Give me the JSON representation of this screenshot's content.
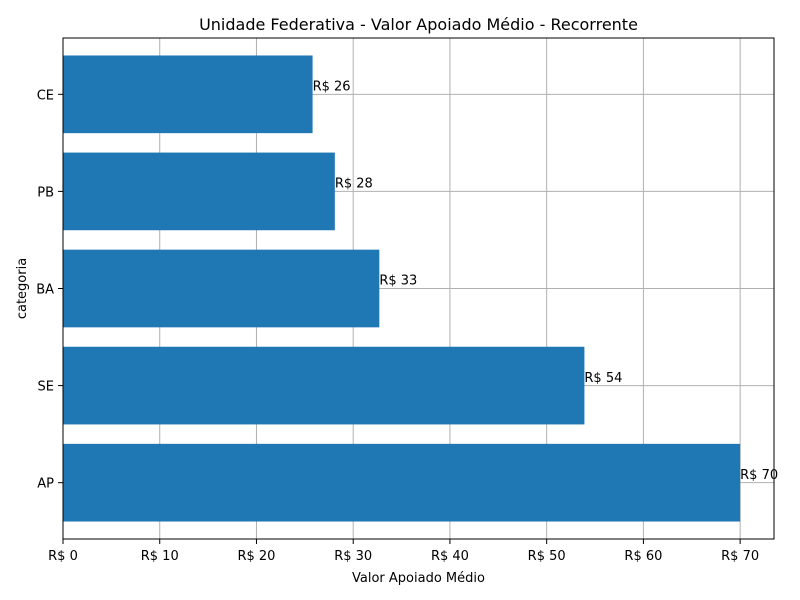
{
  "chart_data": {
    "type": "bar",
    "orientation": "horizontal",
    "title": "Unidade Federativa - Valor Apoiado Médio - Recorrente",
    "xlabel": "Valor Apoiado Médio",
    "ylabel": "categoria",
    "categories": [
      "AP",
      "SE",
      "BA",
      "PB",
      "CE"
    ],
    "values": [
      70.0,
      53.9,
      32.7,
      28.1,
      25.8
    ],
    "data_labels": [
      "R$ 70",
      "R$ 54",
      "R$ 33",
      "R$ 28",
      "R$ 26"
    ],
    "xlim": [
      0,
      73.5
    ],
    "x_ticks": [
      0,
      10,
      20,
      30,
      40,
      50,
      60,
      70
    ],
    "x_tick_labels": [
      "R$ 0",
      "R$ 10",
      "R$ 20",
      "R$ 30",
      "R$ 40",
      "R$ 50",
      "R$ 60",
      "R$ 70"
    ],
    "grid": true,
    "bar_color": "#1f77b4",
    "grid_color": "#b0b0b0"
  }
}
